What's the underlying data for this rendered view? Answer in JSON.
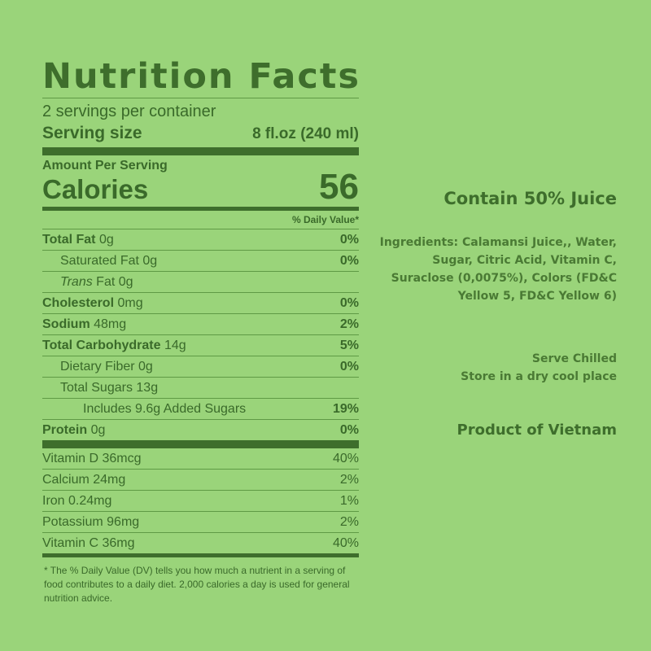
{
  "label": {
    "title": "Nutrition Facts",
    "servings_per_container": "2 servings per container",
    "serving_size_label": "Serving size",
    "serving_size_value": "8 fl.oz (240 ml)",
    "amount_per_serving": "Amount Per Serving",
    "calories_label": "Calories",
    "calories_value": "56",
    "daily_value_header": "% Daily Value*",
    "nutrients": [
      {
        "name": "Total Fat",
        "amount": "0g",
        "dv": "0%"
      },
      {
        "name": "Saturated Fat",
        "amount": "0g",
        "dv": "0%"
      },
      {
        "name": "Trans",
        "name_rest": "Fat",
        "amount": "0g",
        "dv": ""
      },
      {
        "name": "Cholesterol",
        "amount": "0mg",
        "dv": "0%"
      },
      {
        "name": "Sodium",
        "amount": "48mg",
        "dv": "2%"
      },
      {
        "name": "Total Carbohydrate",
        "amount": "14g",
        "dv": "5%"
      },
      {
        "name": "Dietary Fiber",
        "amount": "0g",
        "dv": "0%"
      },
      {
        "name": "Total Sugars",
        "amount": "13g",
        "dv": ""
      },
      {
        "name": "Includes 9.6g Added Sugars",
        "amount": "",
        "dv": "19%"
      },
      {
        "name": "Protein",
        "amount": "0g",
        "dv": "0%"
      }
    ],
    "vitamins": [
      {
        "name": "Vitamin D 36mcg",
        "dv": "40%"
      },
      {
        "name": "Calcium 24mg",
        "dv": "2%"
      },
      {
        "name": "Iron 0.24mg",
        "dv": "1%"
      },
      {
        "name": "Potassium 96mg",
        "dv": "2%"
      },
      {
        "name": "Vitamin C 36mg",
        "dv": "40%"
      }
    ],
    "footnote": "* The % Daily Value (DV) tells you how much a nutrient in a serving of food contributes to a daily diet. 2,000 calories a day is used for general nutrition advice."
  },
  "side": {
    "juice": "Contain 50% Juice",
    "ingredients": "Ingredients: Calamansi Juice,, Water, Sugar, Citric Acid, Vitamin C, Suraclose (0,0075%), Colors (FD&C Yellow 5, FD&C Yellow 6)",
    "serve": "Serve Chilled",
    "store": "Store in a dry cool place",
    "origin": "Product of Vietnam"
  },
  "colors": {
    "background": "#9ad47a",
    "ink": "#3e6e2c"
  }
}
